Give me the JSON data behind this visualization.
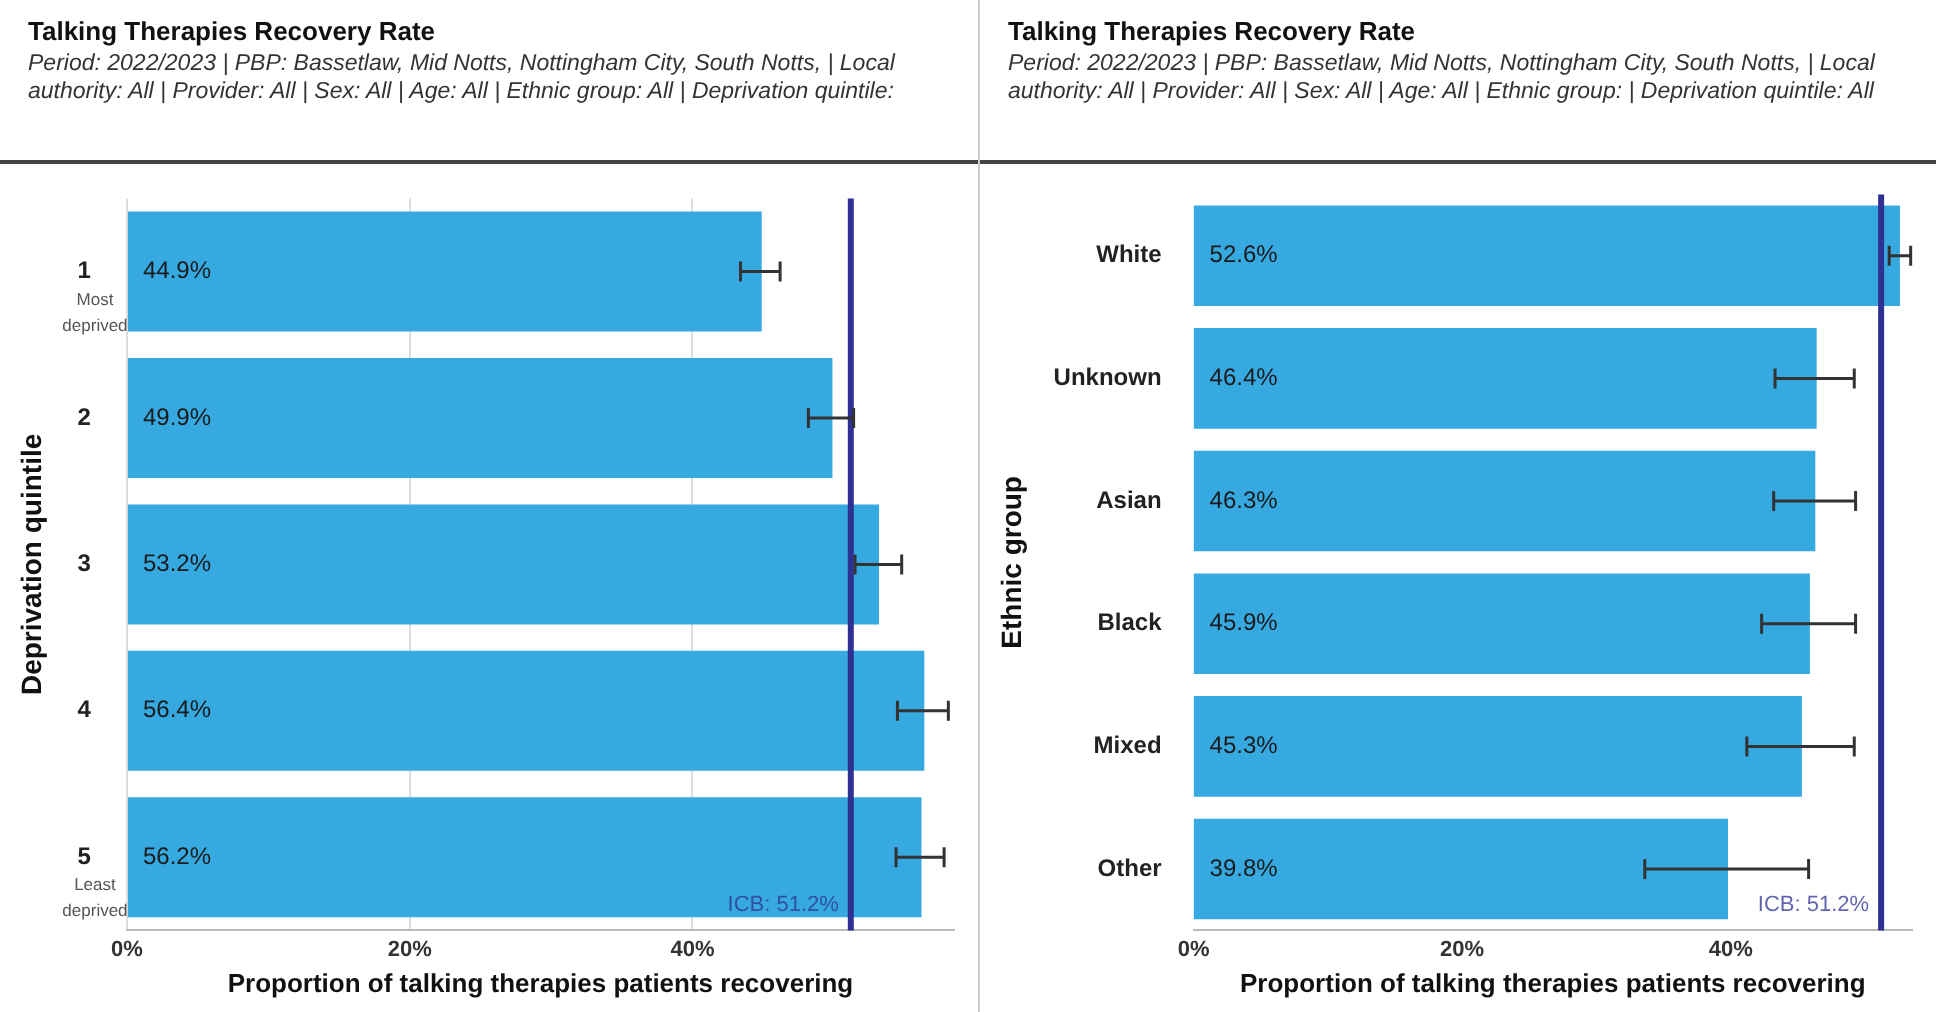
{
  "chart_data": [
    {
      "type": "bar",
      "orientation": "horizontal",
      "title": "Talking Therapies Recovery Rate",
      "subtitle": "Period: 2022/2023 | PBP: Bassetlaw, Mid Notts, Nottingham City, South Notts, | Local authority: All | Provider: All | Sex: All | Age: All | Ethnic group: All | Deprivation quintile:",
      "xlabel": "Proportion of talking therapies patients recovering",
      "ylabel": "Deprivation quintile",
      "categories": [
        "1",
        "2",
        "3",
        "4",
        "5"
      ],
      "values": [
        44.9,
        49.9,
        53.2,
        56.4,
        56.2
      ],
      "value_labels": [
        "44.9%",
        "49.9%",
        "53.2%",
        "56.4%",
        "56.2%"
      ],
      "errors": [
        [
          43.4,
          46.2
        ],
        [
          48.2,
          51.4
        ],
        [
          51.5,
          54.8
        ],
        [
          54.5,
          58.1
        ],
        [
          54.4,
          57.8
        ]
      ],
      "color": "#36a9e1",
      "xlim": [
        0,
        58.5
      ],
      "xticks": [
        {
          "value": 0,
          "label": "0%"
        },
        {
          "value": 20,
          "label": "20%"
        },
        {
          "value": 40,
          "label": "40%"
        }
      ],
      "ref_lines": [
        {
          "axis": "x",
          "value": 51.2,
          "label": "ICB: 51.2%",
          "color": "#2e3192"
        }
      ],
      "annotations": [
        "Most deprived",
        "Least deprived"
      ],
      "grid": "x",
      "legend": false
    },
    {
      "type": "bar",
      "orientation": "horizontal",
      "title": "Talking Therapies Recovery Rate",
      "subtitle": "Period: 2022/2023 | PBP: Bassetlaw, Mid Notts, Nottingham City, South Notts, | Local authority: All | Provider: All | Sex: All | Age: All | Ethnic group: | Deprivation quintile: All",
      "xlabel": "Proportion of talking therapies patients recovering",
      "ylabel": "Ethnic group",
      "categories": [
        "White",
        "Unknown",
        "Asian",
        "Black",
        "Mixed",
        "Other"
      ],
      "values": [
        52.6,
        46.4,
        46.3,
        45.9,
        45.3,
        39.8
      ],
      "value_labels": [
        "52.6%",
        "46.4%",
        "46.3%",
        "45.9%",
        "45.3%",
        "39.8%"
      ],
      "errors": [
        [
          51.8,
          53.4
        ],
        [
          43.3,
          49.2
        ],
        [
          43.2,
          49.3
        ],
        [
          42.3,
          49.3
        ],
        [
          41.2,
          49.2
        ],
        [
          33.6,
          45.8
        ]
      ],
      "color": "#36a9e1",
      "xlim": [
        0,
        53.5
      ],
      "xticks": [
        {
          "value": 0,
          "label": "0%"
        },
        {
          "value": 20,
          "label": "20%"
        },
        {
          "value": 40,
          "label": "40%"
        }
      ],
      "ref_lines": [
        {
          "axis": "x",
          "value": 51.2,
          "label": "ICB: 51.2%",
          "color": "#2e3192"
        }
      ],
      "legend": false
    }
  ]
}
